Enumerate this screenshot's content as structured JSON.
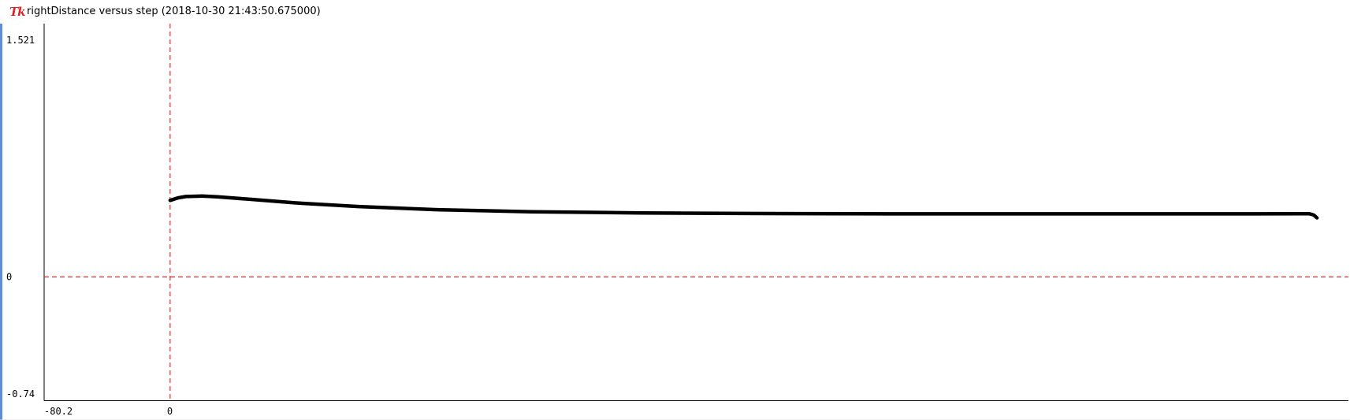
{
  "window": {
    "title": "rightDistance versus step (2018-10-30 21:43:50.675000)",
    "logo_text": "Tk",
    "logo_color": "#d9232a"
  },
  "chart_data": {
    "type": "line",
    "xlim": [
      -80.2,
      750
    ],
    "ylim": [
      -0.74,
      1.521
    ],
    "grid": false,
    "reference_lines": {
      "x": 0,
      "y": 0,
      "color": "#ff0000",
      "style": "dashed"
    },
    "tick_labels": {
      "y_top": "1.521",
      "y_zero": "0",
      "y_bottom": "-0.74",
      "x_left": "-80.2",
      "x_zero": "0"
    },
    "series": [
      {
        "color": "#000000",
        "x": [
          0,
          5,
          10,
          20,
          30,
          50,
          80,
          120,
          170,
          230,
          300,
          380,
          460,
          540,
          620,
          690,
          720,
          725,
          728,
          730
        ],
        "y": [
          0.46,
          0.475,
          0.483,
          0.486,
          0.482,
          0.467,
          0.445,
          0.423,
          0.404,
          0.392,
          0.385,
          0.381,
          0.379,
          0.379,
          0.379,
          0.379,
          0.38,
          0.38,
          0.372,
          0.355
        ]
      }
    ]
  }
}
